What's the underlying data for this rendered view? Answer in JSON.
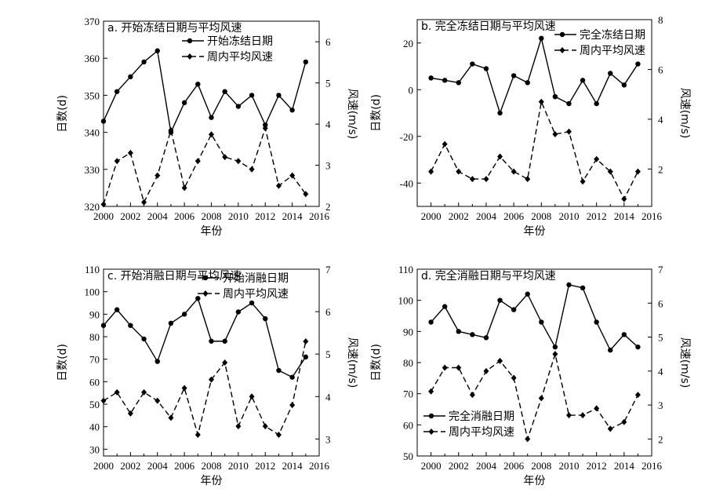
{
  "chart_data": [
    {
      "type": "line",
      "title": "a. 开始冻结日期与平均风速",
      "xlabel": "年份",
      "ylabel": "日数(d)",
      "y2label": "风速(m/s)",
      "xlim": [
        2000,
        2016
      ],
      "xticks": [
        "2000",
        "2002",
        "2004",
        "2006",
        "2008",
        "2010",
        "2012",
        "2014",
        "2016"
      ],
      "ylim": [
        320,
        370
      ],
      "yticks": [
        "320",
        "330",
        "340",
        "350",
        "360",
        "370"
      ],
      "y2lim": [
        2,
        6.5
      ],
      "y2ticks": [
        "2",
        "3",
        "4",
        "5",
        "6"
      ],
      "legend_position": "top-right",
      "x": [
        2000,
        2001,
        2002,
        2003,
        2004,
        2005,
        2006,
        2007,
        2008,
        2009,
        2010,
        2011,
        2012,
        2013,
        2014,
        2015
      ],
      "series": [
        {
          "name": "开始冻结日期",
          "axis": "left",
          "style": "solid",
          "marker": "circle",
          "values": [
            343,
            351,
            355,
            359,
            362,
            340,
            348,
            353,
            344,
            351,
            347,
            350,
            342,
            350,
            346,
            359
          ]
        },
        {
          "name": "周内平均风速",
          "axis": "right",
          "style": "dashed",
          "marker": "diamond",
          "values": [
            2.05,
            3.1,
            3.3,
            2.1,
            2.75,
            3.85,
            2.45,
            3.1,
            3.75,
            3.2,
            3.1,
            2.9,
            3.9,
            2.5,
            2.75,
            2.3
          ]
        }
      ]
    },
    {
      "type": "line",
      "title": "b. 完全冻结日期与平均风速",
      "xlabel": "年份",
      "ylabel": "日数(d)",
      "y2label": "风速(m/s)",
      "xlim": [
        1999,
        2016
      ],
      "xticks": [
        "2000",
        "2002",
        "2004",
        "2006",
        "2008",
        "2010",
        "2012",
        "2014",
        "2016"
      ],
      "ylim": [
        -50,
        30
      ],
      "yticks": [
        "-40",
        "-20",
        "0",
        "20"
      ],
      "y2lim": [
        0.5,
        8
      ],
      "y2ticks": [
        "2",
        "4",
        "6",
        "8"
      ],
      "legend_position": "top-right",
      "x": [
        2000,
        2001,
        2002,
        2003,
        2004,
        2005,
        2006,
        2007,
        2008,
        2009,
        2010,
        2011,
        2012,
        2013,
        2014,
        2015
      ],
      "series": [
        {
          "name": "完全冻结日期",
          "axis": "left",
          "style": "solid",
          "marker": "circle",
          "values": [
            5,
            4,
            3,
            11,
            9,
            -10,
            6,
            3,
            22,
            -3,
            -6,
            4,
            -6,
            7,
            2,
            11
          ]
        },
        {
          "name": "周内平均风速",
          "axis": "right",
          "style": "dashed",
          "marker": "diamond",
          "values": [
            1.9,
            3.0,
            1.9,
            1.6,
            1.6,
            2.5,
            1.9,
            1.6,
            4.7,
            3.4,
            3.5,
            1.5,
            2.4,
            1.9,
            0.8,
            1.9
          ]
        }
      ]
    },
    {
      "type": "line",
      "title": "c. 开始消融日期与平均风速",
      "xlabel": "年份",
      "ylabel": "日数(d)",
      "y2label": "风速(m/s)",
      "xlim": [
        2000,
        2016
      ],
      "xticks": [
        "2000",
        "2002",
        "2004",
        "2006",
        "2008",
        "2010",
        "2012",
        "2014",
        "2016"
      ],
      "ylim": [
        27,
        110
      ],
      "yticks": [
        "30",
        "40",
        "50",
        "60",
        "70",
        "80",
        "90",
        "100",
        "110"
      ],
      "y2lim": [
        2.6,
        7
      ],
      "y2ticks": [
        "3",
        "4",
        "5",
        "6",
        "7"
      ],
      "legend_position": "top-right",
      "x": [
        2000,
        2001,
        2002,
        2003,
        2004,
        2005,
        2006,
        2007,
        2008,
        2009,
        2010,
        2011,
        2012,
        2013,
        2014,
        2015
      ],
      "series": [
        {
          "name": "开始消融日期",
          "axis": "left",
          "style": "solid",
          "marker": "circle",
          "values": [
            85,
            92,
            85,
            79,
            69,
            86,
            90,
            97,
            78,
            78,
            91,
            95,
            88,
            65,
            62,
            71
          ]
        },
        {
          "name": "周内平均风速",
          "axis": "right",
          "style": "dashed",
          "marker": "diamond",
          "values": [
            3.9,
            4.1,
            3.6,
            4.1,
            3.9,
            3.5,
            4.2,
            3.1,
            4.4,
            4.8,
            3.3,
            4.0,
            3.3,
            3.1,
            3.8,
            5.3
          ]
        }
      ]
    },
    {
      "type": "line",
      "title": "d. 完全消融日期与平均风速",
      "xlabel": "年份",
      "ylabel": "日数(d)",
      "y2label": "风速(m/s)",
      "xlim": [
        1999,
        2016
      ],
      "xticks": [
        "2000",
        "2002",
        "2004",
        "2006",
        "2008",
        "2010",
        "2012",
        "2014",
        "2016"
      ],
      "ylim": [
        50,
        110
      ],
      "yticks": [
        "50",
        "60",
        "70",
        "80",
        "90",
        "100",
        "110"
      ],
      "y2lim": [
        1.5,
        7
      ],
      "y2ticks": [
        "2",
        "3",
        "4",
        "5",
        "6",
        "7"
      ],
      "legend_position": "bottom-left",
      "x": [
        2000,
        2001,
        2002,
        2003,
        2004,
        2005,
        2006,
        2007,
        2008,
        2009,
        2010,
        2011,
        2012,
        2013,
        2014,
        2015
      ],
      "series": [
        {
          "name": "完全消融日期",
          "axis": "left",
          "style": "solid",
          "marker": "circle",
          "values": [
            93,
            98,
            90,
            89,
            88,
            100,
            97,
            102,
            93,
            85,
            105,
            104,
            93,
            84,
            89,
            85
          ]
        },
        {
          "name": "周内平均风速",
          "axis": "right",
          "style": "dashed",
          "marker": "diamond",
          "values": [
            3.4,
            4.1,
            4.1,
            3.3,
            4.0,
            4.3,
            3.8,
            2.0,
            3.2,
            4.5,
            2.7,
            2.7,
            2.9,
            2.3,
            2.5,
            3.3
          ]
        }
      ]
    }
  ]
}
